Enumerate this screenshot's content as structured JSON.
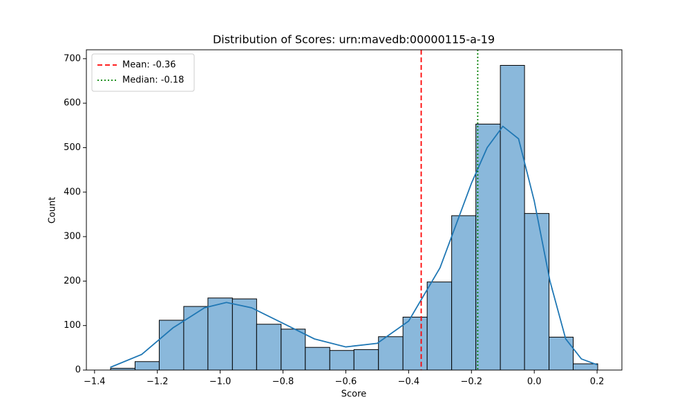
{
  "chart_data": {
    "type": "histogram",
    "title": "Distribution of Scores: urn:mavedb:00000115-a-19",
    "xlabel": "Score",
    "ylabel": "Count",
    "bins": [
      -1.349,
      -1.271,
      -1.194,
      -1.116,
      -1.039,
      -0.961,
      -0.884,
      -0.806,
      -0.729,
      -0.651,
      -0.574,
      -0.496,
      -0.418,
      -0.341,
      -0.263,
      -0.186,
      -0.108,
      -0.031,
      0.047,
      0.124,
      0.202
    ],
    "counts": [
      4,
      19,
      112,
      143,
      162,
      160,
      103,
      92,
      51,
      44,
      46,
      75,
      119,
      198,
      347,
      553,
      685,
      352,
      74,
      14
    ],
    "color": "#8ab8db",
    "edgecolor": "#000000",
    "kde": {
      "color": "#1f77b4",
      "x": [
        -1.35,
        -1.25,
        -1.15,
        -1.05,
        -0.98,
        -0.9,
        -0.8,
        -0.7,
        -0.6,
        -0.5,
        -0.4,
        -0.3,
        -0.2,
        -0.15,
        -0.1,
        -0.05,
        0,
        0.05,
        0.1,
        0.15,
        0.2
      ],
      "y": [
        6,
        35,
        95,
        140,
        152,
        140,
        105,
        70,
        52,
        60,
        110,
        230,
        420,
        500,
        548,
        520,
        380,
        200,
        70,
        25,
        12
      ]
    },
    "vlines": [
      {
        "value": -0.36,
        "label": "Mean: -0.36",
        "color": "#ff0000",
        "style": "dashed"
      },
      {
        "value": -0.18,
        "label": "Median: -0.18",
        "color": "#008000",
        "style": "dotted"
      }
    ],
    "legend": "upper left",
    "xlim": [
      -1.426,
      0.279
    ],
    "ylim": [
      0,
      720
    ],
    "xticks": [
      {
        "value": -1.4,
        "label": "−1.4"
      },
      {
        "value": -1.2,
        "label": "−1.2"
      },
      {
        "value": -1.0,
        "label": "−1.0"
      },
      {
        "value": -0.8,
        "label": "−0.8"
      },
      {
        "value": -0.6,
        "label": "−0.6"
      },
      {
        "value": -0.4,
        "label": "−0.4"
      },
      {
        "value": -0.2,
        "label": "−0.2"
      },
      {
        "value": 0,
        "label": "0.0"
      },
      0.2
    ],
    "yticks": [
      0,
      100,
      200,
      300,
      400,
      500,
      600,
      700
    ]
  }
}
